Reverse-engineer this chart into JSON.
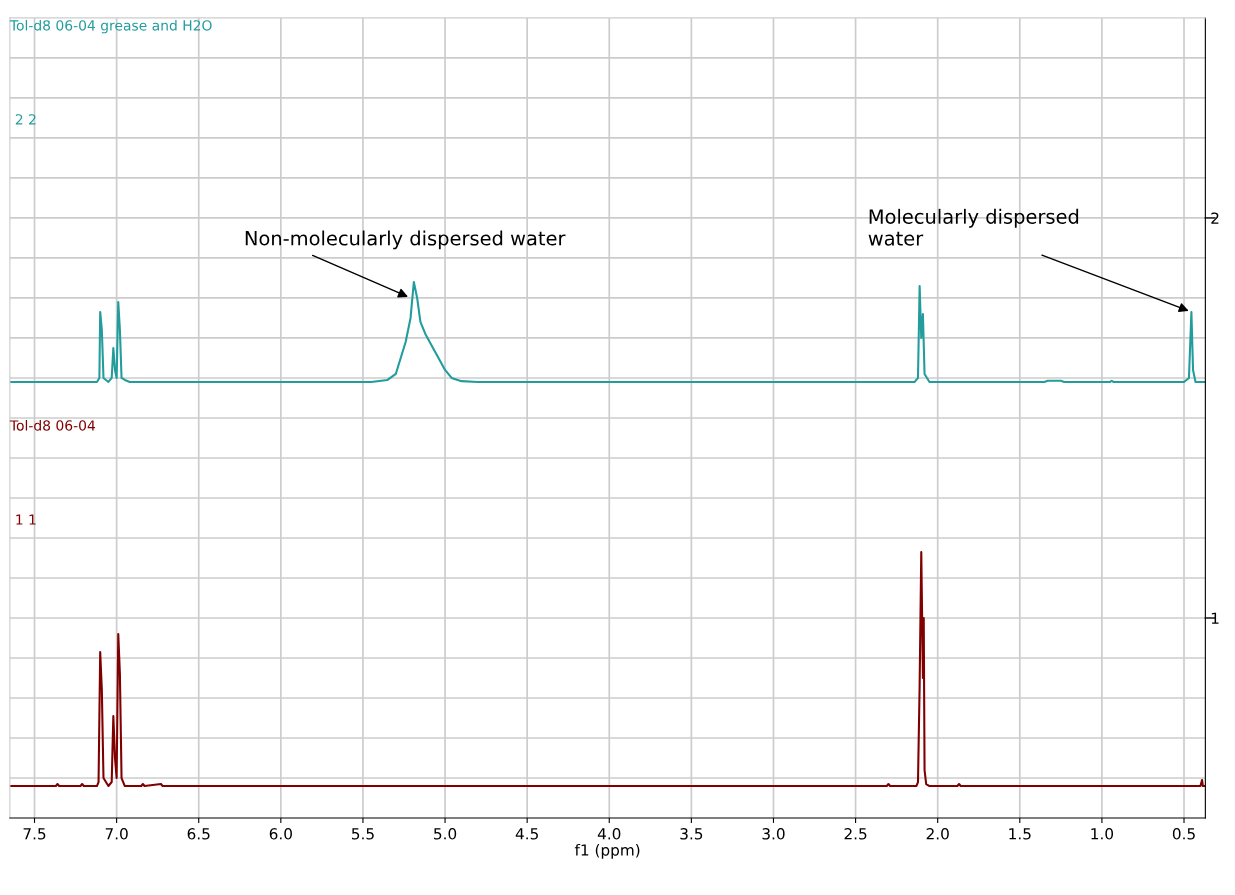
{
  "chart_data": {
    "type": "line",
    "xlabel": "f1 (ppm)",
    "xlim": [
      7.65,
      0.37
    ],
    "xticks": [
      7.5,
      {
        "value": 7,
        "label": "7.0"
      },
      6.5,
      {
        "value": 6,
        "label": "6.0"
      },
      5.5,
      {
        "value": 5,
        "label": "5.0"
      },
      4.5,
      {
        "value": 4,
        "label": "4.0"
      },
      3.5,
      {
        "value": 3,
        "label": "3.0"
      },
      2.5,
      {
        "value": 2,
        "label": "2.0"
      },
      1.5,
      {
        "value": 1,
        "label": "1.0"
      },
      0.5
    ],
    "ylim": [
      0.5,
      2.5
    ],
    "yticks": [
      {
        "value": 0.6,
        "label": null
      },
      {
        "value": 0.7,
        "label": null
      },
      {
        "value": 0.8,
        "label": null
      },
      {
        "value": 0.9,
        "label": null
      },
      1,
      {
        "value": 1.1,
        "label": null
      },
      {
        "value": 1.2,
        "label": null
      },
      {
        "value": 1.3,
        "label": null
      },
      {
        "value": 1.4,
        "label": null
      },
      {
        "value": 1.5,
        "label": null
      },
      {
        "value": 1.6,
        "label": null
      },
      {
        "value": 1.7,
        "label": null
      },
      {
        "value": 1.8,
        "label": null
      },
      {
        "value": 1.9,
        "label": null
      },
      2,
      {
        "value": 2.1,
        "label": null
      },
      {
        "value": 2.2,
        "label": null
      },
      {
        "value": 2.3,
        "label": null
      },
      {
        "value": 2.4,
        "label": null
      }
    ],
    "grid": true,
    "legend": false,
    "marker": "none",
    "line_style": "solid",
    "series": [
      {
        "name": "Tol-d8 06-04 grease and H2O",
        "color": "#229c9c",
        "x": [
          7.65,
          7.12,
          7.105,
          7.1,
          7.09,
          7.08,
          7.05,
          7.03,
          7.02,
          7.01,
          7.0,
          6.99,
          6.98,
          6.97,
          6.95,
          6.92,
          5.45,
          5.35,
          5.3,
          5.27,
          5.24,
          5.21,
          5.19,
          5.17,
          5.15,
          5.12,
          5.08,
          5.04,
          5.0,
          4.96,
          4.9,
          4.8,
          2.14,
          2.12,
          2.11,
          2.1,
          2.09,
          2.08,
          2.05,
          1.35,
          1.33,
          1.25,
          1.23,
          0.95,
          0.94,
          0.93,
          0.5,
          0.47,
          0.455,
          0.445,
          0.43,
          0.37
        ],
        "values": [
          1.59,
          1.59,
          1.6,
          1.765,
          1.72,
          1.6,
          1.59,
          1.6,
          1.675,
          1.62,
          1.6,
          1.79,
          1.72,
          1.6,
          1.595,
          1.59,
          1.59,
          1.595,
          1.61,
          1.65,
          1.69,
          1.75,
          1.84,
          1.8,
          1.74,
          1.71,
          1.68,
          1.65,
          1.62,
          1.6,
          1.592,
          1.59,
          1.59,
          1.6,
          1.83,
          1.7,
          1.76,
          1.61,
          1.59,
          1.59,
          1.593,
          1.593,
          1.59,
          1.59,
          1.593,
          1.59,
          1.59,
          1.6,
          1.765,
          1.62,
          1.59,
          1.59
        ]
      },
      {
        "name": "Tol-d8 06-04",
        "color": "#800000",
        "x": [
          7.65,
          7.37,
          7.36,
          7.35,
          7.22,
          7.21,
          7.2,
          7.12,
          7.11,
          7.1,
          7.09,
          7.08,
          7.05,
          7.03,
          7.02,
          7.01,
          7.0,
          6.99,
          6.98,
          6.97,
          6.95,
          6.85,
          6.84,
          6.83,
          6.73,
          6.72,
          2.31,
          2.3,
          2.29,
          2.13,
          2.12,
          2.11,
          2.1,
          2.09,
          2.085,
          2.08,
          2.07,
          2.05,
          1.88,
          1.87,
          1.86,
          0.4,
          0.39,
          0.385,
          0.37
        ],
        "values": [
          0.58,
          0.58,
          0.585,
          0.58,
          0.58,
          0.585,
          0.58,
          0.58,
          0.59,
          0.915,
          0.82,
          0.6,
          0.58,
          0.59,
          0.755,
          0.65,
          0.6,
          0.96,
          0.86,
          0.6,
          0.58,
          0.58,
          0.585,
          0.58,
          0.585,
          0.58,
          0.58,
          0.585,
          0.58,
          0.58,
          0.59,
          0.83,
          1.165,
          0.85,
          1.0,
          0.62,
          0.585,
          0.58,
          0.58,
          0.585,
          0.58,
          0.58,
          0.595,
          0.58,
          0.58
        ]
      }
    ],
    "annotations": [
      "2 2",
      "1 1",
      {
        "text": "Non-molecularly dispersed water",
        "x": 5.21,
        "y": 1.8
      },
      {
        "text": "Molecularly dispersed\nwater",
        "x": 0.455,
        "y": 1.765
      }
    ]
  }
}
